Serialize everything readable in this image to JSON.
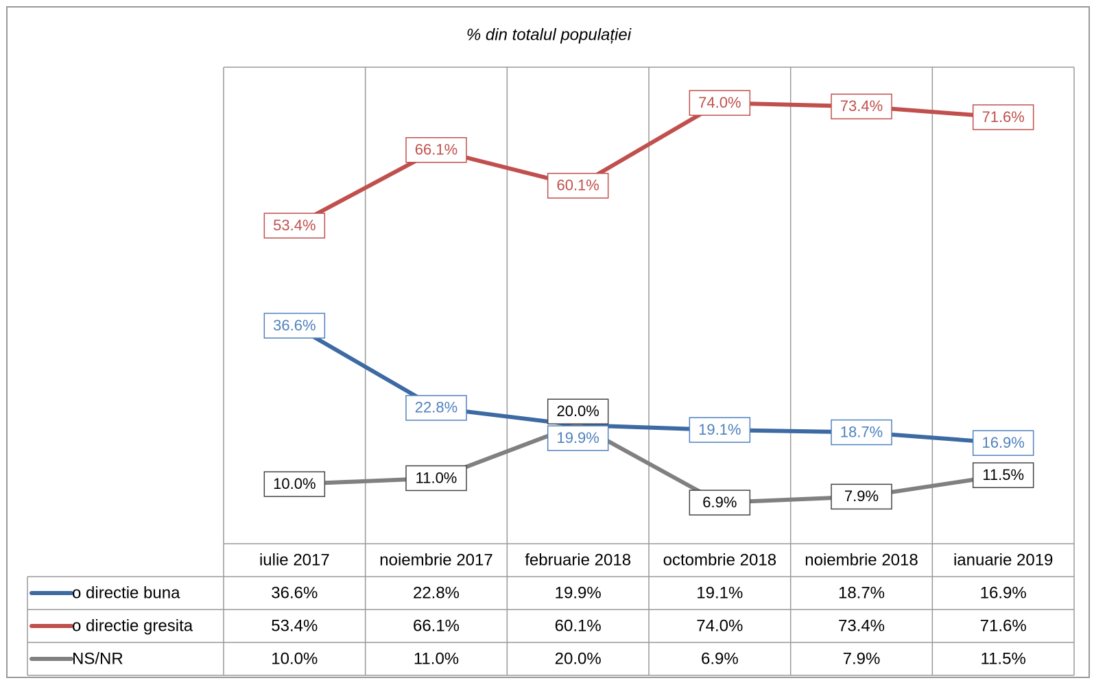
{
  "chart_data": {
    "type": "line",
    "title": "% din totalul populației",
    "categories": [
      "iulie 2017",
      "noiembrie 2017",
      "februarie 2018",
      "octombrie 2018",
      "noiembrie 2018",
      "ianuarie 2019"
    ],
    "ylim": [
      0,
      80
    ],
    "grid": true,
    "series": [
      {
        "name": "o directie buna",
        "color": "#3d6aa3",
        "label_color": "#4f81bd",
        "values": [
          36.6,
          22.8,
          19.9,
          19.1,
          18.7,
          16.9
        ],
        "value_labels": [
          "36.6%",
          "22.8%",
          "19.9%",
          "19.1%",
          "18.7%",
          "16.9%"
        ]
      },
      {
        "name": "o directie gresita",
        "color": "#c0504d",
        "label_color": "#c0504d",
        "values": [
          53.4,
          66.1,
          60.1,
          74.0,
          73.4,
          71.6
        ],
        "value_labels": [
          "53.4%",
          "66.1%",
          "60.1%",
          "74.0%",
          "73.4%",
          "71.6%"
        ]
      },
      {
        "name": "NS/NR",
        "color": "#808080",
        "label_color": "#000000",
        "values": [
          10.0,
          11.0,
          20.0,
          6.9,
          7.9,
          11.5
        ],
        "value_labels": [
          "10.0%",
          "11.0%",
          "20.0%",
          "6.9%",
          "7.9%",
          "11.5%"
        ]
      }
    ]
  }
}
